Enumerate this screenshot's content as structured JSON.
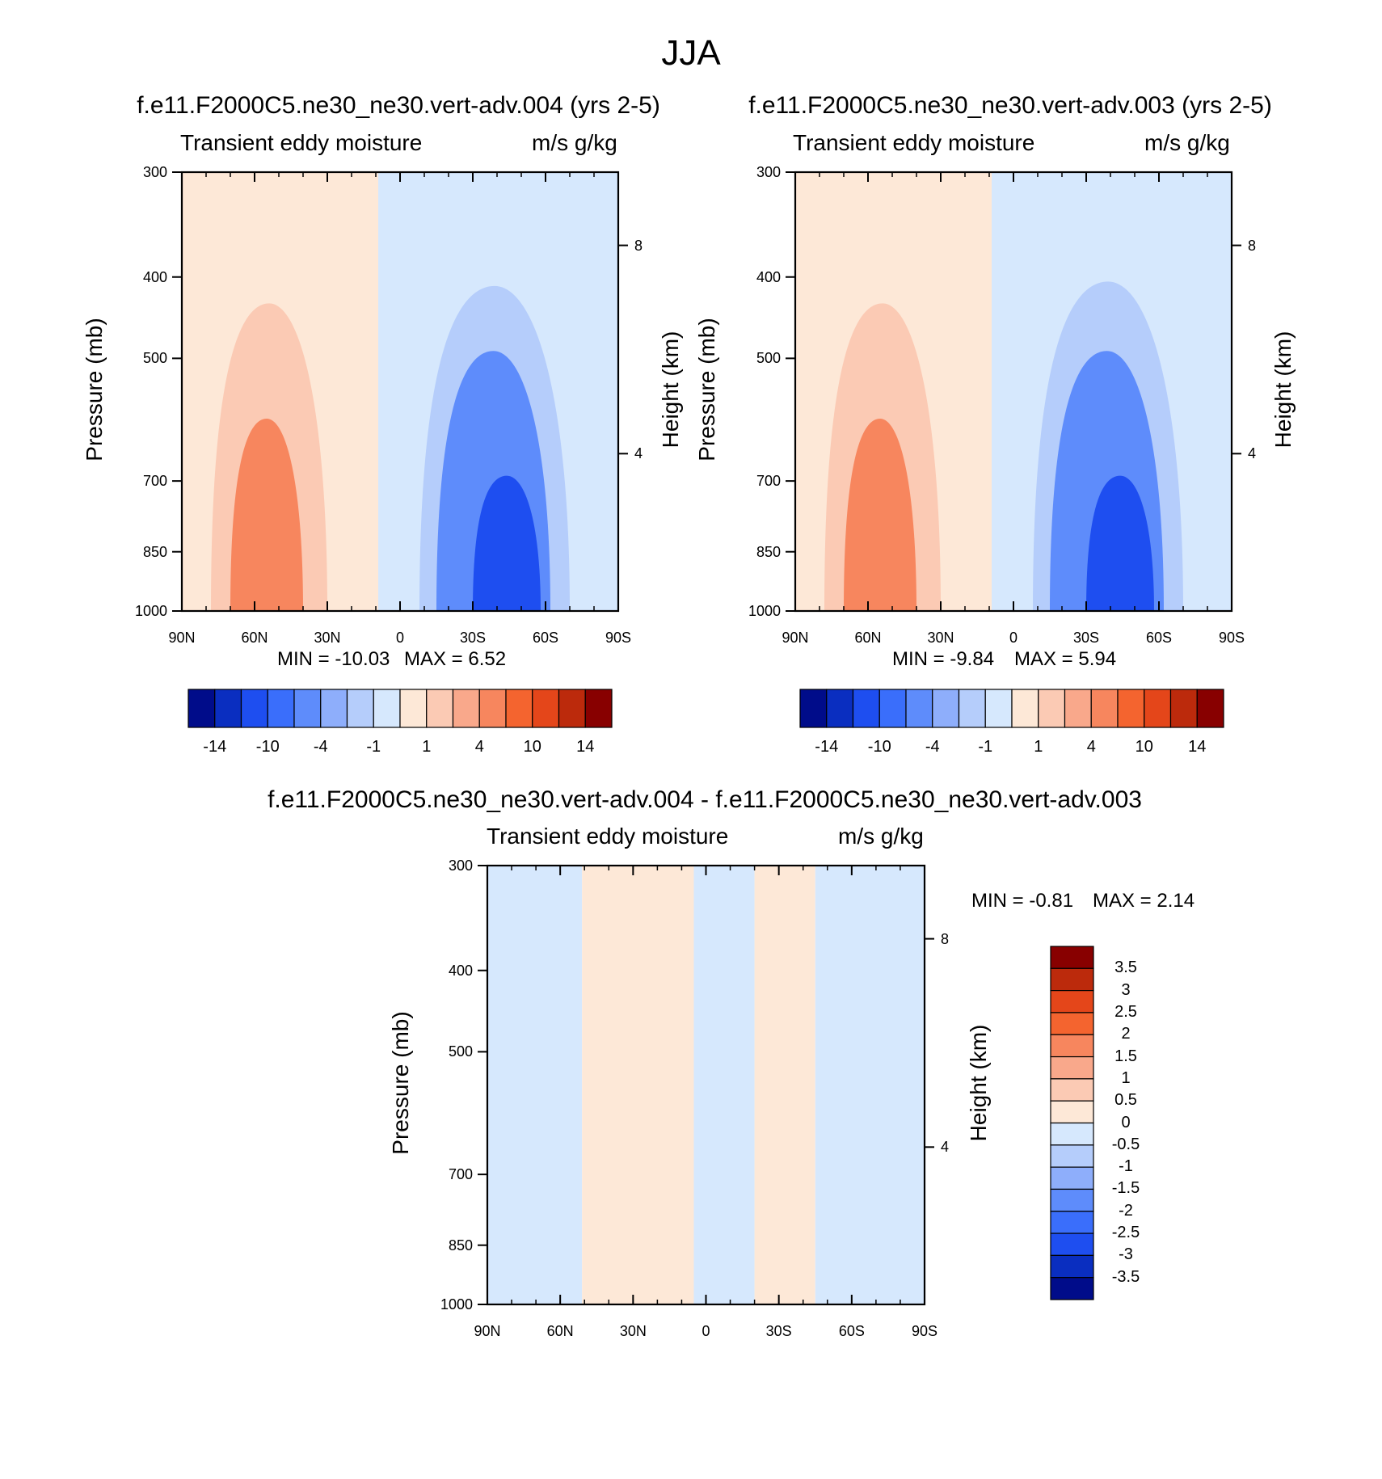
{
  "figure": {
    "title": "JJA"
  },
  "colors": {
    "warm": [
      "#fde8d7",
      "#fbcab4",
      "#f9a88b",
      "#f7865e",
      "#f4642f",
      "#e4461a",
      "#bc2a0c",
      "#880000"
    ],
    "cool": [
      "#d6e8fd",
      "#b5cdfb",
      "#8eaefb",
      "#5e8cfb",
      "#3a6efb",
      "#1e4ef0",
      "#0a2ec0",
      "#000c8a"
    ],
    "line": "#000000",
    "background": "#ffffff"
  },
  "chart_data": [
    {
      "type": "heatmap",
      "title": "f.e11.F2000C5.ne30_ne30.vert-adv.004 (yrs 2-5)",
      "left_string": "Transient eddy moisture",
      "right_string": "m/s g/kg",
      "xlabel": "",
      "ylabel": "Pressure (mb)",
      "y2label": "Height (km)",
      "x_ticks": [
        "90N",
        "60N",
        "30N",
        "0",
        "30S",
        "60S",
        "90S"
      ],
      "x_values": [
        90,
        60,
        30,
        0,
        -30,
        -60,
        -90
      ],
      "y_ticks": [
        "300",
        "400",
        "500",
        "700",
        "850",
        "1000"
      ],
      "y2_ticks": [
        "8",
        "4"
      ],
      "ylim": [
        1000,
        300
      ],
      "min_label": "MIN = -10.03",
      "max_label": "MAX =   6.52",
      "min": -10.03,
      "max": 6.52,
      "colorbar": {
        "orientation": "horizontal",
        "labels": [
          "-14",
          "-10",
          "-4",
          "-1",
          "1",
          "4",
          "10",
          "14"
        ]
      },
      "regions": [
        {
          "value": 0.5,
          "lat": [
            90,
            9
          ],
          "p": [
            300,
            1000
          ]
        },
        {
          "value": -0.5,
          "lat": [
            9,
            -90
          ],
          "p": [
            300,
            1000
          ]
        },
        {
          "value": 2,
          "lat": [
            78,
            30
          ],
          "p": [
            430,
            1000
          ]
        },
        {
          "value": 6,
          "lat": [
            70,
            40
          ],
          "p": [
            590,
            1000
          ]
        },
        {
          "value": -2,
          "lat": [
            -8,
            -70
          ],
          "p": [
            410,
            1000
          ]
        },
        {
          "value": -6,
          "lat": [
            -15,
            -62
          ],
          "p": [
            490,
            1000
          ]
        },
        {
          "value": -10,
          "lat": [
            -30,
            -58
          ],
          "p": [
            690,
            1000
          ]
        }
      ]
    },
    {
      "type": "heatmap",
      "title": "f.e11.F2000C5.ne30_ne30.vert-adv.003 (yrs 2-5)",
      "left_string": "Transient eddy moisture",
      "right_string": "m/s g/kg",
      "xlabel": "",
      "ylabel": "Pressure (mb)",
      "y2label": "Height (km)",
      "x_ticks": [
        "90N",
        "60N",
        "30N",
        "0",
        "30S",
        "60S",
        "90S"
      ],
      "x_values": [
        90,
        60,
        30,
        0,
        -30,
        -60,
        -90
      ],
      "y_ticks": [
        "300",
        "400",
        "500",
        "700",
        "850",
        "1000"
      ],
      "y2_ticks": [
        "8",
        "4"
      ],
      "ylim": [
        1000,
        300
      ],
      "min_label": "MIN =  -9.84",
      "max_label": "MAX =   5.94",
      "min": -9.84,
      "max": 5.94,
      "colorbar": {
        "orientation": "horizontal",
        "labels": [
          "-14",
          "-10",
          "-4",
          "-1",
          "1",
          "4",
          "10",
          "14"
        ]
      },
      "regions": [
        {
          "value": 0.5,
          "lat": [
            90,
            9
          ],
          "p": [
            300,
            1000
          ]
        },
        {
          "value": -0.5,
          "lat": [
            9,
            -90
          ],
          "p": [
            300,
            1000
          ]
        },
        {
          "value": 2,
          "lat": [
            78,
            30
          ],
          "p": [
            430,
            1000
          ]
        },
        {
          "value": 6,
          "lat": [
            70,
            40
          ],
          "p": [
            590,
            1000
          ]
        },
        {
          "value": -2,
          "lat": [
            -8,
            -70
          ],
          "p": [
            405,
            1000
          ]
        },
        {
          "value": -6,
          "lat": [
            -15,
            -62
          ],
          "p": [
            490,
            1000
          ]
        },
        {
          "value": -10,
          "lat": [
            -30,
            -58
          ],
          "p": [
            690,
            1000
          ]
        }
      ]
    },
    {
      "type": "heatmap",
      "title": "f.e11.F2000C5.ne30_ne30.vert-adv.004 - f.e11.F2000C5.ne30_ne30.vert-adv.003",
      "left_string": "Transient eddy moisture",
      "right_string": "m/s g/kg",
      "xlabel": "",
      "ylabel": "Pressure (mb)",
      "y2label": "Height (km)",
      "x_ticks": [
        "90N",
        "60N",
        "30N",
        "0",
        "30S",
        "60S",
        "90S"
      ],
      "x_values": [
        90,
        60,
        30,
        0,
        -30,
        -60,
        -90
      ],
      "y_ticks": [
        "300",
        "400",
        "500",
        "700",
        "850",
        "1000"
      ],
      "y2_ticks": [
        "8",
        "4"
      ],
      "ylim": [
        1000,
        300
      ],
      "min_label": "MIN =  -0.81",
      "max_label": "MAX =   2.14",
      "min": -0.81,
      "max": 2.14,
      "colorbar": {
        "orientation": "vertical",
        "labels": [
          "3.5",
          "3",
          "2.5",
          "2",
          "1.5",
          "1",
          "0.5",
          "0",
          "-0.5",
          "-1",
          "-1.5",
          "-2",
          "-2.5",
          "-3",
          "-3.5"
        ]
      },
      "regions": [
        {
          "value": -0.25,
          "lat": [
            90,
            51
          ],
          "p": [
            300,
            1000
          ]
        },
        {
          "value": 0.25,
          "lat": [
            51,
            5
          ],
          "p": [
            300,
            1000
          ]
        },
        {
          "value": -0.25,
          "lat": [
            5,
            -20
          ],
          "p": [
            300,
            1000
          ]
        },
        {
          "value": 0.25,
          "lat": [
            -20,
            -45
          ],
          "p": [
            300,
            1000
          ]
        },
        {
          "value": -0.25,
          "lat": [
            -45,
            -90
          ],
          "p": [
            300,
            1000
          ]
        }
      ]
    }
  ]
}
